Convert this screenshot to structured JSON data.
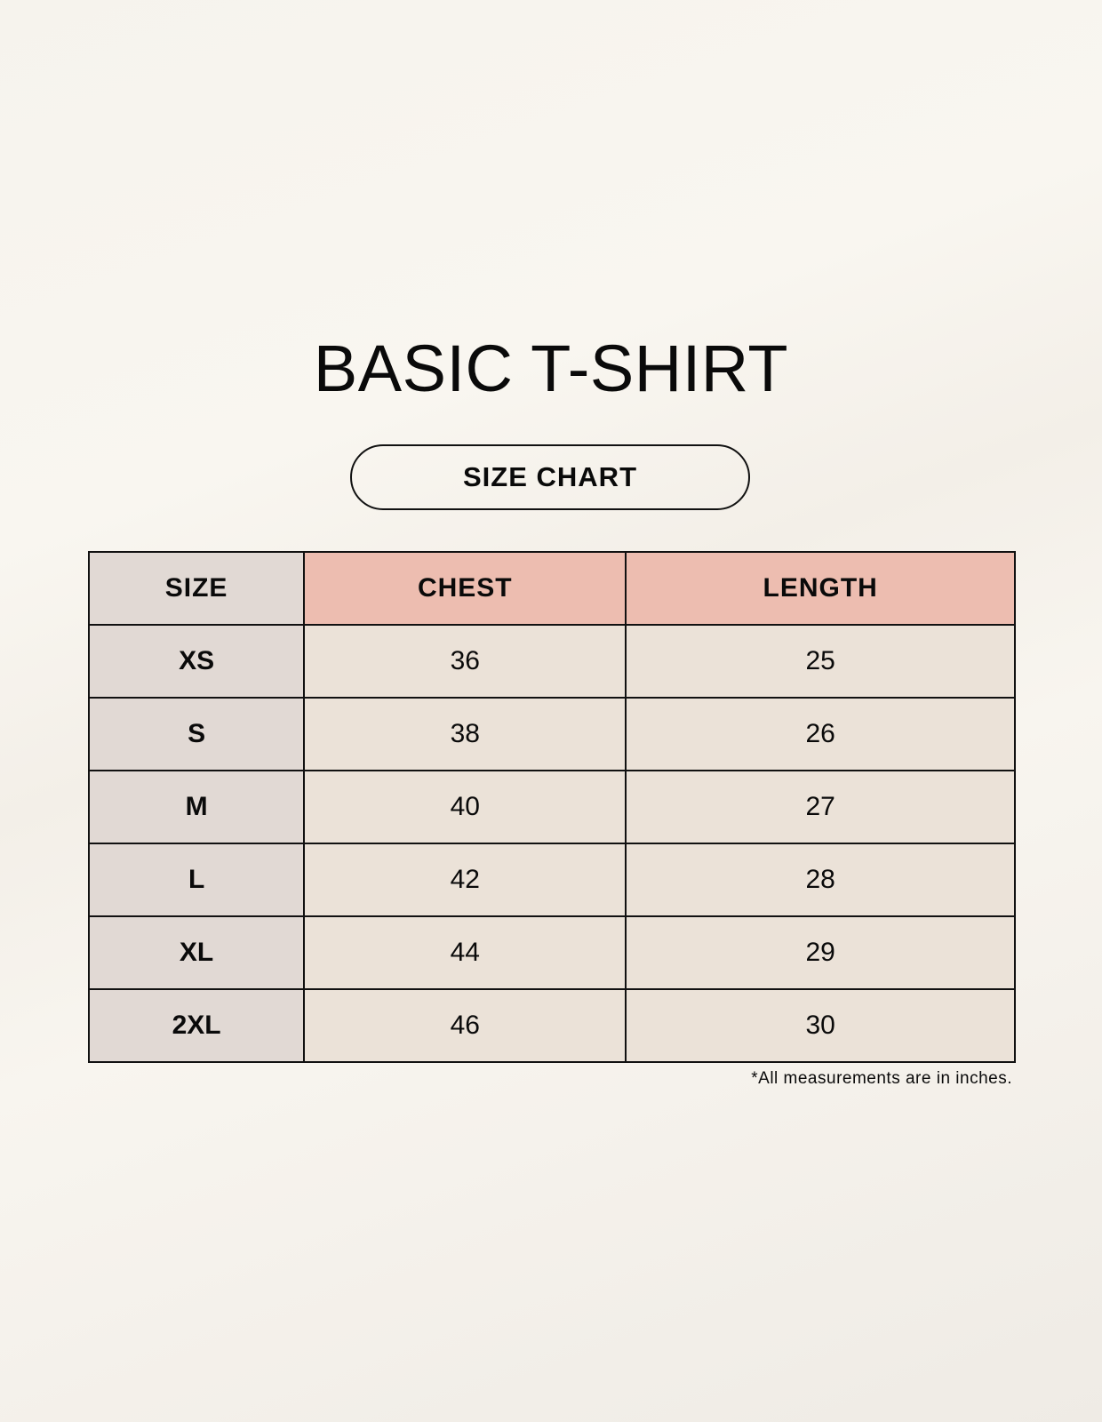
{
  "title": "BASIC T-SHIRT",
  "subtitle": "SIZE CHART",
  "colors": {
    "header_size": "#e1d9d4",
    "header_measure": "#edbdb0",
    "size_cell": "#e1d9d4",
    "value_cell": "#ebe2d8"
  },
  "table": {
    "headers": [
      "SIZE",
      "CHEST",
      "LENGTH"
    ],
    "rows": [
      [
        "XS",
        "36",
        "25"
      ],
      [
        "S",
        "38",
        "26"
      ],
      [
        "M",
        "40",
        "27"
      ],
      [
        "L",
        "42",
        "28"
      ],
      [
        "XL",
        "44",
        "29"
      ],
      [
        "2XL",
        "46",
        "30"
      ]
    ]
  },
  "footnote": "*All measurements are in inches."
}
